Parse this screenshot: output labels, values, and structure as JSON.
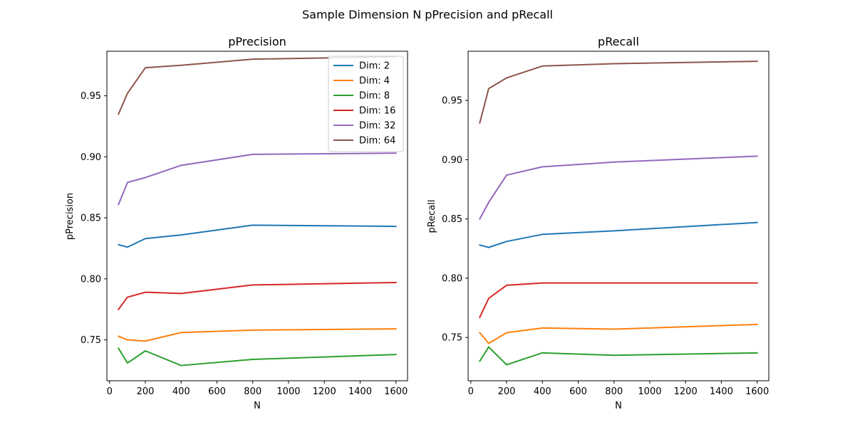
{
  "suptitle": "Sample Dimension N pPrecision and pRecall",
  "chart_data": [
    {
      "type": "line",
      "title": "pPrecision",
      "xlabel": "N",
      "ylabel": "pPrecision",
      "x": [
        50,
        100,
        200,
        400,
        800,
        1600
      ],
      "xlim": [
        -15,
        1665
      ],
      "ylim": [
        0.7165,
        0.9865
      ],
      "xticks": [
        0,
        200,
        400,
        600,
        800,
        1000,
        1200,
        1400,
        1600
      ],
      "yticks": [
        0.75,
        0.8,
        0.85,
        0.9,
        0.95
      ],
      "ytick_labels": [
        "0.75",
        "0.80",
        "0.85",
        "0.90",
        "0.95"
      ],
      "legend": "top-right",
      "series": [
        {
          "name": "Dim: 2",
          "color": "#1f77b4",
          "values": [
            0.828,
            0.826,
            0.833,
            0.836,
            0.844,
            0.843
          ]
        },
        {
          "name": "Dim: 4",
          "color": "#ff7f0e",
          "values": [
            0.753,
            0.75,
            0.749,
            0.756,
            0.758,
            0.759
          ]
        },
        {
          "name": "Dim: 8",
          "color": "#2ca02c",
          "values": [
            0.743,
            0.731,
            0.741,
            0.729,
            0.734,
            0.738
          ]
        },
        {
          "name": "Dim: 16",
          "color": "#d62728",
          "values": [
            0.775,
            0.785,
            0.789,
            0.788,
            0.795,
            0.797
          ]
        },
        {
          "name": "Dim: 32",
          "color": "#9467bd",
          "values": [
            0.861,
            0.879,
            0.883,
            0.893,
            0.902,
            0.903
          ]
        },
        {
          "name": "Dim: 64",
          "color": "#8c564b",
          "values": [
            0.935,
            0.952,
            0.973,
            0.975,
            0.98,
            0.982
          ]
        }
      ]
    },
    {
      "type": "line",
      "title": "pRecall",
      "xlabel": "N",
      "ylabel": "pRecall",
      "x": [
        50,
        100,
        200,
        400,
        800,
        1600
      ],
      "xlim": [
        -15,
        1665
      ],
      "ylim": [
        0.7135,
        0.9915
      ],
      "xticks": [
        0,
        200,
        400,
        600,
        800,
        1000,
        1200,
        1400,
        1600
      ],
      "yticks": [
        0.75,
        0.8,
        0.85,
        0.9,
        0.95
      ],
      "ytick_labels": [
        "0.75",
        "0.80",
        "0.85",
        "0.90",
        "0.95"
      ],
      "series": [
        {
          "name": "Dim: 2",
          "color": "#1f77b4",
          "values": [
            0.828,
            0.826,
            0.831,
            0.837,
            0.84,
            0.847
          ]
        },
        {
          "name": "Dim: 4",
          "color": "#ff7f0e",
          "values": [
            0.754,
            0.745,
            0.754,
            0.758,
            0.757,
            0.761
          ]
        },
        {
          "name": "Dim: 8",
          "color": "#2ca02c",
          "values": [
            0.73,
            0.742,
            0.727,
            0.737,
            0.735,
            0.737
          ]
        },
        {
          "name": "Dim: 16",
          "color": "#d62728",
          "values": [
            0.767,
            0.783,
            0.794,
            0.796,
            0.796,
            0.796
          ]
        },
        {
          "name": "Dim: 32",
          "color": "#9467bd",
          "values": [
            0.85,
            0.864,
            0.887,
            0.894,
            0.898,
            0.903
          ]
        },
        {
          "name": "Dim: 64",
          "color": "#8c564b",
          "values": [
            0.931,
            0.96,
            0.969,
            0.979,
            0.981,
            0.983
          ]
        }
      ]
    }
  ]
}
